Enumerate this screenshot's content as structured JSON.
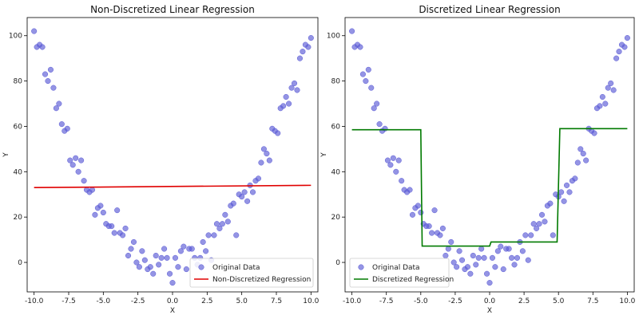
{
  "chart_data": [
    {
      "type": "scatter",
      "title": "Non-Discretized Linear Regression",
      "xlabel": "X",
      "ylabel": "Y",
      "xlim": [
        -10.5,
        10.5
      ],
      "ylim": [
        -13,
        108
      ],
      "xticks": [
        "-10.0",
        "-7.5",
        "-5.0",
        "-2.5",
        "0.0",
        "2.5",
        "5.0",
        "7.5",
        "10.0"
      ],
      "yticks": [
        "0",
        "20",
        "40",
        "60",
        "80",
        "100"
      ],
      "legend_position": "lower-right",
      "series": [
        {
          "name": "Original Data",
          "type": "scatter",
          "color": "#5b5bd6",
          "x": [
            -10.0,
            -9.8,
            -9.6,
            -9.4,
            -9.2,
            -9.0,
            -8.8,
            -8.6,
            -8.4,
            -8.2,
            -8.0,
            -7.8,
            -7.6,
            -7.4,
            -7.2,
            -7.0,
            -6.8,
            -6.6,
            -6.4,
            -6.2,
            -6.0,
            -5.8,
            -5.6,
            -5.4,
            -5.2,
            -5.0,
            -4.8,
            -4.6,
            -4.4,
            -4.2,
            -4.0,
            -3.8,
            -3.6,
            -3.4,
            -3.2,
            -3.0,
            -2.8,
            -2.6,
            -2.4,
            -2.2,
            -2.0,
            -1.8,
            -1.6,
            -1.4,
            -1.2,
            -1.0,
            -0.8,
            -0.6,
            -0.4,
            -0.2,
            0.0,
            0.2,
            0.4,
            0.6,
            0.8,
            1.0,
            1.2,
            1.4,
            1.6,
            1.8,
            2.0,
            2.2,
            2.4,
            2.6,
            2.8,
            3.0,
            3.2,
            3.4,
            3.6,
            3.8,
            4.0,
            4.2,
            4.4,
            4.6,
            4.8,
            5.0,
            5.2,
            5.4,
            5.6,
            5.8,
            6.0,
            6.2,
            6.4,
            6.6,
            6.8,
            7.0,
            7.2,
            7.4,
            7.6,
            7.8,
            8.0,
            8.2,
            8.4,
            8.6,
            8.8,
            9.0,
            9.2,
            9.4,
            9.6,
            9.8,
            10.0
          ],
          "y": [
            102,
            95,
            96,
            95,
            83,
            80,
            85,
            77,
            68,
            70,
            61,
            58,
            59,
            45,
            43,
            46,
            40,
            45,
            36,
            32,
            31,
            32,
            21,
            24,
            25,
            22,
            17,
            16,
            16,
            13,
            23,
            13,
            12,
            15,
            3,
            6,
            9,
            0,
            -2,
            5,
            1,
            -3,
            -2,
            -5,
            3,
            -1,
            2,
            6,
            2,
            -5,
            -9,
            2,
            -2,
            5,
            7,
            -3,
            6,
            6,
            2,
            -1,
            2,
            9,
            5,
            12,
            1,
            12,
            17,
            15,
            17,
            21,
            18,
            25,
            26,
            12,
            30,
            29,
            31,
            27,
            34,
            31,
            36,
            37,
            44,
            50,
            48,
            45,
            59,
            58,
            57,
            68,
            69,
            73,
            70,
            77,
            79,
            76,
            90,
            93,
            96,
            95,
            99
          ]
        },
        {
          "name": "Non-Discretized Regression",
          "type": "line",
          "color": "#e00000",
          "x": [
            -10.0,
            10.0
          ],
          "y": [
            33.0,
            34.0
          ]
        }
      ]
    },
    {
      "type": "scatter",
      "title": "Discretized Linear Regression",
      "xlabel": "X",
      "ylabel": "Y",
      "xlim": [
        -10.5,
        10.5
      ],
      "ylim": [
        -13,
        108
      ],
      "xticks": [
        "-10.0",
        "-7.5",
        "-5.0",
        "-2.5",
        "0.0",
        "2.5",
        "5.0",
        "7.5",
        "10.0"
      ],
      "yticks": [
        "0",
        "20",
        "40",
        "60",
        "80",
        "100"
      ],
      "legend_position": "lower-left",
      "series": [
        {
          "name": "Original Data",
          "type": "scatter",
          "color": "#5b5bd6",
          "x": [
            -10.0,
            -9.8,
            -9.6,
            -9.4,
            -9.2,
            -9.0,
            -8.8,
            -8.6,
            -8.4,
            -8.2,
            -8.0,
            -7.8,
            -7.6,
            -7.4,
            -7.2,
            -7.0,
            -6.8,
            -6.6,
            -6.4,
            -6.2,
            -6.0,
            -5.8,
            -5.6,
            -5.4,
            -5.2,
            -5.0,
            -4.8,
            -4.6,
            -4.4,
            -4.2,
            -4.0,
            -3.8,
            -3.6,
            -3.4,
            -3.2,
            -3.0,
            -2.8,
            -2.6,
            -2.4,
            -2.2,
            -2.0,
            -1.8,
            -1.6,
            -1.4,
            -1.2,
            -1.0,
            -0.8,
            -0.6,
            -0.4,
            -0.2,
            0.0,
            0.2,
            0.4,
            0.6,
            0.8,
            1.0,
            1.2,
            1.4,
            1.6,
            1.8,
            2.0,
            2.2,
            2.4,
            2.6,
            2.8,
            3.0,
            3.2,
            3.4,
            3.6,
            3.8,
            4.0,
            4.2,
            4.4,
            4.6,
            4.8,
            5.0,
            5.2,
            5.4,
            5.6,
            5.8,
            6.0,
            6.2,
            6.4,
            6.6,
            6.8,
            7.0,
            7.2,
            7.4,
            7.6,
            7.8,
            8.0,
            8.2,
            8.4,
            8.6,
            8.8,
            9.0,
            9.2,
            9.4,
            9.6,
            9.8,
            10.0
          ],
          "y": [
            102,
            95,
            96,
            95,
            83,
            80,
            85,
            77,
            68,
            70,
            61,
            58,
            59,
            45,
            43,
            46,
            40,
            45,
            36,
            32,
            31,
            32,
            21,
            24,
            25,
            22,
            17,
            16,
            16,
            13,
            23,
            13,
            12,
            15,
            3,
            6,
            9,
            0,
            -2,
            5,
            1,
            -3,
            -2,
            -5,
            3,
            -1,
            2,
            6,
            2,
            -5,
            -9,
            2,
            -2,
            5,
            7,
            -3,
            6,
            6,
            2,
            -1,
            2,
            9,
            5,
            12,
            1,
            12,
            17,
            15,
            17,
            21,
            18,
            25,
            26,
            12,
            30,
            29,
            31,
            27,
            34,
            31,
            36,
            37,
            44,
            50,
            48,
            45,
            59,
            58,
            57,
            68,
            69,
            73,
            70,
            77,
            79,
            76,
            90,
            93,
            96,
            95,
            99
          ]
        },
        {
          "name": "Discretized Regression",
          "type": "line",
          "color": "#007a00",
          "x": [
            -10.0,
            -5.0,
            -4.9,
            0.0,
            0.1,
            4.9,
            5.1,
            10.0
          ],
          "y": [
            58.5,
            58.5,
            7.2,
            7.2,
            9.0,
            9.0,
            59.0,
            59.0
          ]
        }
      ]
    }
  ]
}
